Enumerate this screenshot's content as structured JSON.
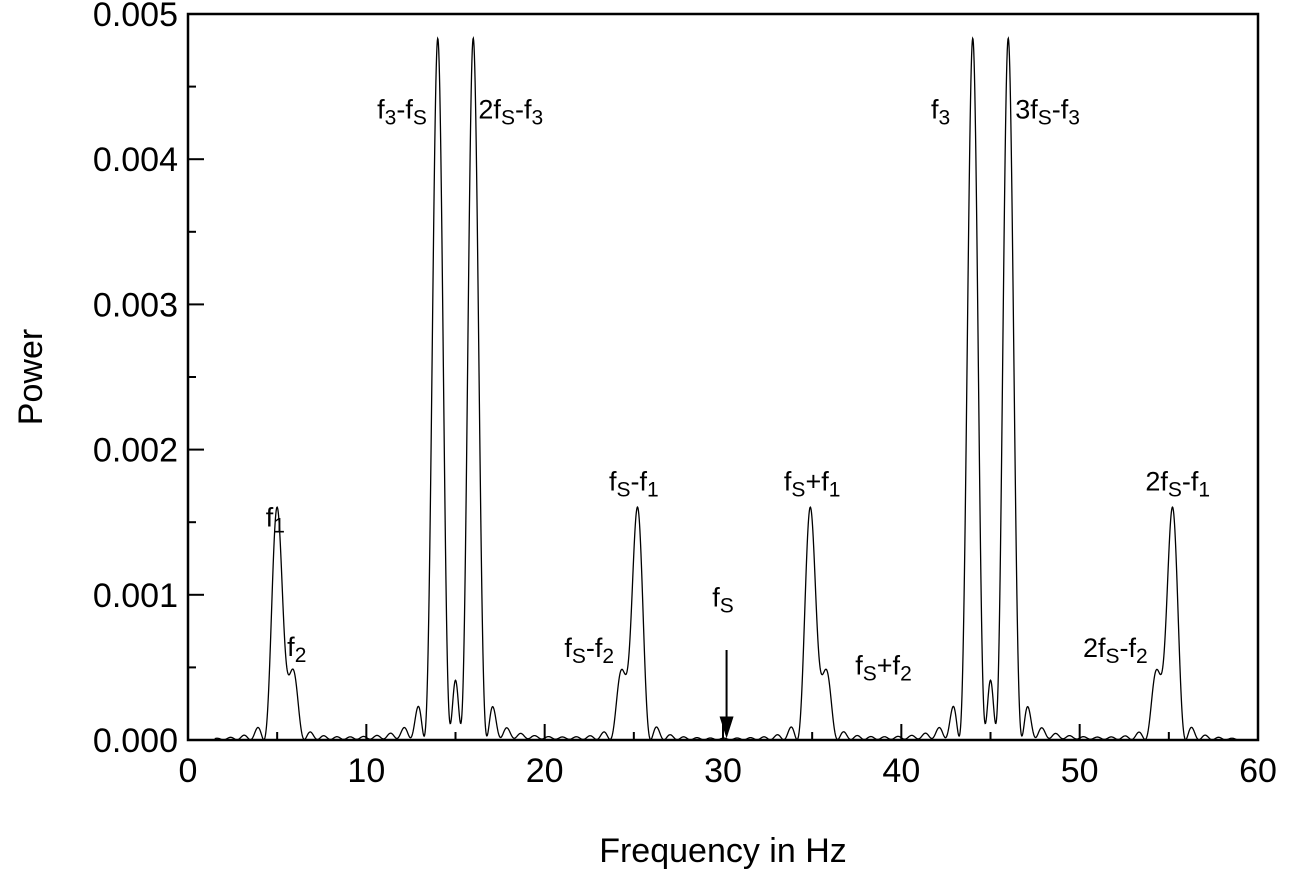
{
  "chart_data": {
    "type": "line",
    "title": "",
    "xlabel": "Frequency in Hz",
    "ylabel": "Power",
    "xlim": [
      0,
      60
    ],
    "ylim": [
      0,
      0.005
    ],
    "xticks": [
      "0",
      "10",
      "20",
      "30",
      "40",
      "50",
      "60"
    ],
    "yticks": [
      "0.000",
      "0.001",
      "0.002",
      "0.003",
      "0.004",
      "0.005"
    ],
    "grid": false,
    "legend": "none",
    "line_color": "#000000",
    "highlight_color": "#e00000",
    "peaks": [
      {
        "x": 5.0,
        "y": 0.0016
      },
      {
        "x": 5.8,
        "y": 0.00047
      },
      {
        "x": 14.0,
        "y": 0.00478
      },
      {
        "x": 16.0,
        "y": 0.00478
      },
      {
        "x": 24.4,
        "y": 0.00047
      },
      {
        "x": 25.2,
        "y": 0.0016
      },
      {
        "x": 34.9,
        "y": 0.0016
      },
      {
        "x": 35.7,
        "y": 0.00047
      },
      {
        "x": 44.0,
        "y": 0.00478
      },
      {
        "x": 46.0,
        "y": 0.00478
      },
      {
        "x": 54.4,
        "y": 0.00047
      },
      {
        "x": 55.2,
        "y": 0.0016
      }
    ],
    "annotations": [
      {
        "id": "f1",
        "x": 4.9,
        "y": 0.00147,
        "parts": [
          [
            "f",
            ""
          ],
          [
            "1",
            "sub"
          ]
        ]
      },
      {
        "id": "f2",
        "x": 6.1,
        "y": 0.00058,
        "parts": [
          [
            "f",
            ""
          ],
          [
            "2",
            "sub"
          ]
        ]
      },
      {
        "id": "f3-fs",
        "x": 12.0,
        "y": 0.00428,
        "parts": [
          [
            "f",
            ""
          ],
          [
            "3",
            "sub"
          ],
          [
            "-f",
            ""
          ],
          [
            "S",
            "sub"
          ]
        ]
      },
      {
        "id": "2fs-f3",
        "x": 18.1,
        "y": 0.00428,
        "parts": [
          [
            "2f",
            ""
          ],
          [
            "S",
            "sub"
          ],
          [
            "-f",
            ""
          ],
          [
            "3",
            "sub"
          ]
        ]
      },
      {
        "id": "fs-f1",
        "x": 25.0,
        "y": 0.00172,
        "parts": [
          [
            "f",
            ""
          ],
          [
            "S",
            "sub"
          ],
          [
            "-f",
            ""
          ],
          [
            "1",
            "sub"
          ]
        ]
      },
      {
        "id": "fs-f2",
        "x": 22.5,
        "y": 0.00057,
        "parts": [
          [
            "f",
            ""
          ],
          [
            "S",
            "sub"
          ],
          [
            "-f",
            ""
          ],
          [
            "2",
            "sub"
          ]
        ]
      },
      {
        "id": "fs",
        "x": 30.0,
        "y": 0.00092,
        "color": "red",
        "parts": [
          [
            "f",
            ""
          ],
          [
            "S",
            "sub"
          ]
        ]
      },
      {
        "id": "fs+f1",
        "x": 35.0,
        "y": 0.00172,
        "parts": [
          [
            "f",
            ""
          ],
          [
            "S",
            "sub"
          ],
          [
            "+f",
            ""
          ],
          [
            "1",
            "sub"
          ]
        ]
      },
      {
        "id": "fs+f2",
        "x": 39.0,
        "y": 0.00045,
        "parts": [
          [
            "f",
            ""
          ],
          [
            "S",
            "sub"
          ],
          [
            "+f",
            ""
          ],
          [
            "2",
            "sub"
          ]
        ]
      },
      {
        "id": "f3",
        "x": 42.2,
        "y": 0.00428,
        "parts": [
          [
            "f",
            ""
          ],
          [
            "3",
            "sub"
          ]
        ]
      },
      {
        "id": "3fs-f3",
        "x": 48.2,
        "y": 0.00428,
        "parts": [
          [
            "3f",
            ""
          ],
          [
            "S",
            "sub"
          ],
          [
            "-f",
            ""
          ],
          [
            "3",
            "sub"
          ]
        ]
      },
      {
        "id": "2fs-f1",
        "x": 55.5,
        "y": 0.00172,
        "parts": [
          [
            "2f",
            ""
          ],
          [
            "S",
            "sub"
          ],
          [
            "-f",
            ""
          ],
          [
            "1",
            "sub"
          ]
        ]
      },
      {
        "id": "2fs-f2",
        "x": 52.0,
        "y": 0.00057,
        "parts": [
          [
            "2f",
            ""
          ],
          [
            "S",
            "sub"
          ],
          [
            "-f",
            ""
          ],
          [
            "2",
            "sub"
          ]
        ]
      }
    ],
    "arrow": {
      "x": 30.2,
      "y_start": 0.00062,
      "y_end": 1e-05
    }
  }
}
